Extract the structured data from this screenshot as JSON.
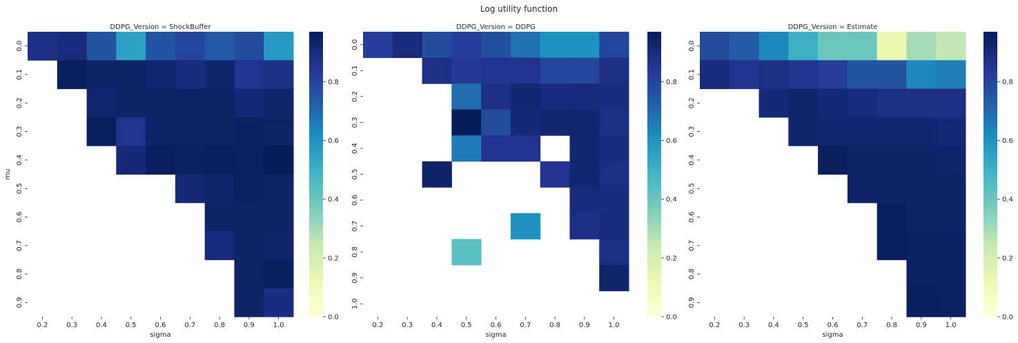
{
  "figure": {
    "suptitle": "Log utility function"
  },
  "colorbar": {
    "ticks": [
      0.0,
      0.2,
      0.4,
      0.6,
      0.8
    ],
    "tick_labels": [
      "0.0",
      "0.2",
      "0.4",
      "0.6",
      "0.8"
    ],
    "vmin": 0.0,
    "vmax": 0.97
  },
  "colormap": {
    "name": "YlGnBu",
    "stops": [
      "#ffffd9",
      "#edf8b1",
      "#c7e9b4",
      "#7fcdbb",
      "#41b6c4",
      "#1d91c0",
      "#225ea8",
      "#253494",
      "#081d58"
    ]
  },
  "chart_data": [
    {
      "type": "heatmap",
      "title": "DDPG_Version = ShockBuffer",
      "xlabel": "sigma",
      "ylabel": "mu",
      "x": [
        "0.2",
        "0.3",
        "0.4",
        "0.5",
        "0.6",
        "0.7",
        "0.8",
        "0.9",
        "1.0"
      ],
      "y": [
        "0.0",
        "0.1",
        "0.2",
        "0.3",
        "0.4",
        "0.5",
        "0.6",
        "0.7",
        "0.8",
        "0.9"
      ],
      "values": [
        [
          0.88,
          0.9,
          0.76,
          0.55,
          0.76,
          0.8,
          0.74,
          0.78,
          0.58
        ],
        [
          null,
          0.96,
          0.94,
          0.94,
          0.92,
          0.9,
          0.93,
          0.86,
          0.88
        ],
        [
          null,
          null,
          0.92,
          0.94,
          0.94,
          0.94,
          0.94,
          0.91,
          0.93
        ],
        [
          null,
          null,
          0.96,
          0.86,
          0.94,
          0.94,
          0.94,
          0.95,
          0.94
        ],
        [
          null,
          null,
          null,
          0.91,
          0.96,
          0.95,
          0.96,
          0.95,
          0.97
        ],
        [
          null,
          null,
          null,
          null,
          null,
          0.91,
          0.93,
          0.95,
          0.94
        ],
        [
          null,
          null,
          null,
          null,
          null,
          null,
          0.94,
          0.94,
          0.94
        ],
        [
          null,
          null,
          null,
          null,
          null,
          null,
          0.9,
          0.94,
          0.93
        ],
        [
          null,
          null,
          null,
          null,
          null,
          null,
          null,
          0.94,
          0.96
        ],
        [
          null,
          null,
          null,
          null,
          null,
          null,
          null,
          0.94,
          0.89
        ]
      ]
    },
    {
      "type": "heatmap",
      "title": "DDPG_Version = DDPG",
      "xlabel": "sigma",
      "ylabel": "",
      "x": [
        "0.2",
        "0.3",
        "0.4",
        "0.5",
        "0.6",
        "0.7",
        "0.8",
        "0.9",
        "1.0"
      ],
      "y": [
        "0.0",
        "0.1",
        "0.2",
        "0.3",
        "0.4",
        "0.5",
        "0.6",
        "0.7",
        "0.8",
        "0.9",
        "1.0"
      ],
      "values": [
        [
          0.82,
          0.9,
          0.78,
          0.82,
          0.77,
          0.68,
          0.6,
          0.6,
          0.8
        ],
        [
          null,
          null,
          0.88,
          0.83,
          0.86,
          0.86,
          0.8,
          0.8,
          0.88
        ],
        [
          null,
          null,
          null,
          0.69,
          0.88,
          0.92,
          0.89,
          0.9,
          0.89
        ],
        [
          null,
          null,
          null,
          0.97,
          0.78,
          0.91,
          0.92,
          0.92,
          0.88
        ],
        [
          null,
          null,
          null,
          0.66,
          0.86,
          0.86,
          null,
          0.92,
          0.89
        ],
        [
          null,
          null,
          0.94,
          null,
          null,
          null,
          0.86,
          0.92,
          0.88
        ],
        [
          null,
          null,
          null,
          null,
          null,
          null,
          null,
          0.9,
          0.89
        ],
        [
          null,
          null,
          null,
          null,
          null,
          0.6,
          null,
          0.88,
          0.9
        ],
        [
          null,
          null,
          null,
          0.43,
          null,
          null,
          null,
          null,
          0.88
        ],
        [
          null,
          null,
          null,
          null,
          null,
          null,
          null,
          null,
          0.93
        ],
        [
          null,
          null,
          null,
          null,
          null,
          null,
          null,
          null,
          null
        ]
      ]
    },
    {
      "type": "heatmap",
      "title": "DDPG_Version = Estimate",
      "xlabel": "sigma",
      "ylabel": "",
      "x": [
        "0.2",
        "0.3",
        "0.4",
        "0.5",
        "0.6",
        "0.7",
        "0.8",
        "0.9",
        "1.0"
      ],
      "y": [
        "0.0",
        "0.1",
        "0.2",
        "0.3",
        "0.4",
        "0.5",
        "0.6",
        "0.7",
        "0.8",
        "0.9"
      ],
      "values": [
        [
          0.78,
          0.74,
          0.63,
          0.5,
          0.4,
          0.4,
          0.12,
          0.3,
          0.25
        ],
        [
          0.9,
          0.86,
          0.88,
          0.86,
          0.82,
          0.76,
          0.76,
          0.63,
          0.65
        ],
        [
          null,
          null,
          0.91,
          0.93,
          0.91,
          0.9,
          0.88,
          0.88,
          0.88
        ],
        [
          null,
          null,
          null,
          0.93,
          0.92,
          0.92,
          0.92,
          0.92,
          0.91
        ],
        [
          null,
          null,
          null,
          null,
          0.96,
          0.94,
          0.94,
          0.94,
          0.93
        ],
        [
          null,
          null,
          null,
          null,
          null,
          0.94,
          0.94,
          0.94,
          0.94
        ],
        [
          null,
          null,
          null,
          null,
          null,
          null,
          0.96,
          0.94,
          0.94
        ],
        [
          null,
          null,
          null,
          null,
          null,
          null,
          0.96,
          0.95,
          0.95
        ],
        [
          null,
          null,
          null,
          null,
          null,
          null,
          null,
          0.95,
          0.95
        ],
        [
          null,
          null,
          null,
          null,
          null,
          null,
          null,
          0.96,
          0.95
        ]
      ]
    }
  ]
}
